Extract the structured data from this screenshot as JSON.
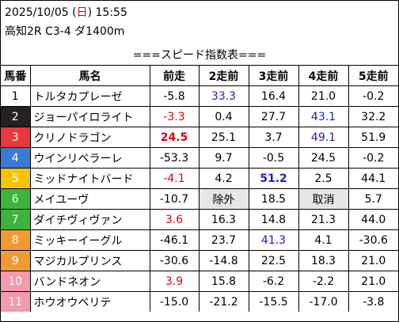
{
  "header": {
    "date_prefix": "2025/10/05 (",
    "weekday": "日",
    "date_suffix": ") 15:55",
    "race": "高知2R C3-4 ダ1400m"
  },
  "table_title": "===スピード指数表===",
  "columns": [
    "馬番",
    "馬名",
    "前走",
    "2走前",
    "3走前",
    "4走前",
    "5走前"
  ],
  "horses": [
    {
      "no": "1",
      "name": "トルタカプレーゼ",
      "bg": "#ffffff",
      "fg": "#000000",
      "v": [
        {
          "t": "-5.8"
        },
        {
          "t": "33.3",
          "c": "blue"
        },
        {
          "t": "16.4"
        },
        {
          "t": "21.0"
        },
        {
          "t": "-0.2"
        }
      ]
    },
    {
      "no": "2",
      "name": "ジョーパイロライト",
      "bg": "#222222",
      "fg": "#ffffff",
      "v": [
        {
          "t": "-3.3",
          "c": "red"
        },
        {
          "t": "0.4"
        },
        {
          "t": "27.7"
        },
        {
          "t": "43.1",
          "c": "blue"
        },
        {
          "t": "32.2"
        }
      ]
    },
    {
      "no": "3",
      "name": "クリノドラゴン",
      "bg": "#e8383d",
      "fg": "#ffffff",
      "v": [
        {
          "t": "24.5",
          "c": "red",
          "b": true
        },
        {
          "t": "25.1"
        },
        {
          "t": "3.7"
        },
        {
          "t": "49.1",
          "c": "blue"
        },
        {
          "t": "51.9"
        }
      ]
    },
    {
      "no": "4",
      "name": "ウインリベラーレ",
      "bg": "#3a7bd5",
      "fg": "#ffffff",
      "v": [
        {
          "t": "-53.3"
        },
        {
          "t": "9.7"
        },
        {
          "t": "-0.5"
        },
        {
          "t": "24.5"
        },
        {
          "t": "-0.2"
        }
      ]
    },
    {
      "no": "5",
      "name": "ミッドナイトバード",
      "bg": "#f2c500",
      "fg": "#ffffff",
      "v": [
        {
          "t": "-4.1",
          "c": "red"
        },
        {
          "t": "4.2"
        },
        {
          "t": "51.2",
          "c": "blue",
          "b": true
        },
        {
          "t": "2.5"
        },
        {
          "t": "44.1"
        }
      ]
    },
    {
      "no": "6",
      "name": "メイユーヴ",
      "bg": "#3cb43c",
      "fg": "#ffffff",
      "v": [
        {
          "t": "-10.7"
        },
        {
          "t": "除外",
          "gray": true
        },
        {
          "t": "18.5"
        },
        {
          "t": "取消",
          "gray": true
        },
        {
          "t": "5.7"
        }
      ]
    },
    {
      "no": "7",
      "name": "ダイチヴィヴァン",
      "bg": "#3cb43c",
      "fg": "#ffffff",
      "v": [
        {
          "t": "3.6",
          "c": "red"
        },
        {
          "t": "16.3"
        },
        {
          "t": "14.8"
        },
        {
          "t": "21.3"
        },
        {
          "t": "44.0"
        }
      ]
    },
    {
      "no": "8",
      "name": "ミッキーイーグル",
      "bg": "#f09a36",
      "fg": "#ffffff",
      "v": [
        {
          "t": "-46.1"
        },
        {
          "t": "23.7"
        },
        {
          "t": "41.3",
          "c": "blue"
        },
        {
          "t": "4.1"
        },
        {
          "t": "-30.6"
        }
      ]
    },
    {
      "no": "9",
      "name": "マジカルプリンス",
      "bg": "#f09a36",
      "fg": "#ffffff",
      "v": [
        {
          "t": "-30.6"
        },
        {
          "t": "-14.8"
        },
        {
          "t": "22.5"
        },
        {
          "t": "18.3"
        },
        {
          "t": "21.0"
        }
      ]
    },
    {
      "no": "10",
      "name": "バンドネオン",
      "bg": "#f29ab0",
      "fg": "#ffffff",
      "v": [
        {
          "t": "3.9",
          "c": "red"
        },
        {
          "t": "15.8"
        },
        {
          "t": "-6.2"
        },
        {
          "t": "-2.2"
        },
        {
          "t": "21.0"
        }
      ]
    },
    {
      "no": "11",
      "name": "ホウオウベリテ",
      "bg": "#f29ab0",
      "fg": "#ffffff",
      "v": [
        {
          "t": "-15.0"
        },
        {
          "t": "-21.2"
        },
        {
          "t": "-15.5"
        },
        {
          "t": "-17.0"
        },
        {
          "t": "-3.8"
        }
      ]
    }
  ]
}
